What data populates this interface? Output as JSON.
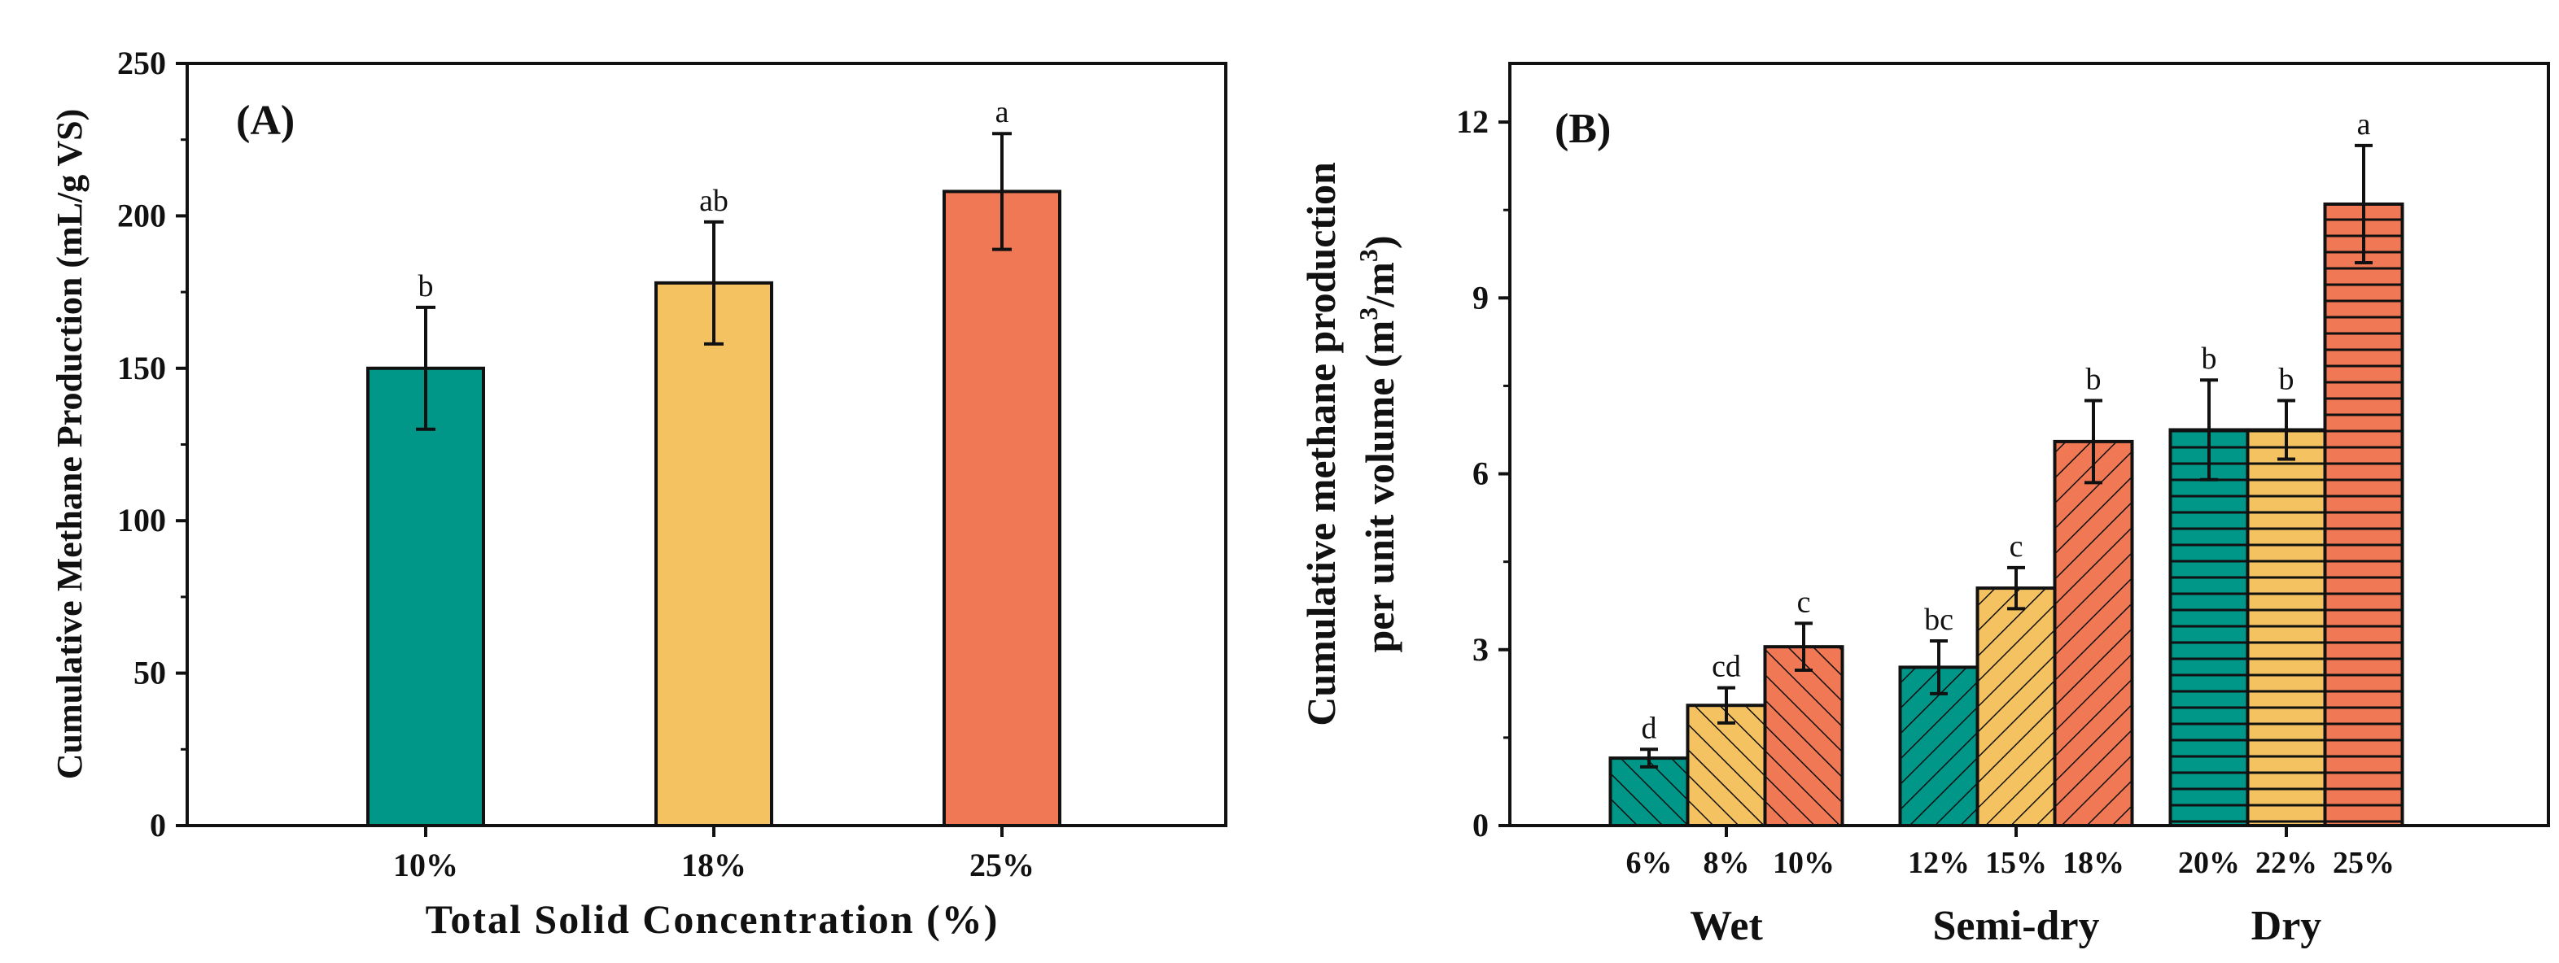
{
  "chart_data": [
    {
      "type": "bar",
      "panel_label": "(A)",
      "title": "",
      "xlabel": "Total Solid Concentration (%)",
      "ylabel": "Cumulative Methane Production (mL/g VS)",
      "categories": [
        "10%",
        "18%",
        "25%"
      ],
      "values": [
        150,
        178,
        208
      ],
      "errors": [
        20,
        20,
        19
      ],
      "letters": [
        "b",
        "ab",
        "a"
      ],
      "ylim": [
        0,
        250
      ],
      "yticks": [
        "0",
        "50",
        "100",
        "150",
        "200",
        "250"
      ],
      "grid": false,
      "colors": [
        "#009688",
        "#F5C262",
        "#F07855"
      ]
    },
    {
      "type": "bar",
      "panel_label": "(B)",
      "title": "",
      "xlabel": "",
      "ylabel_line1": "Cumulative methane production",
      "ylabel_line2": "per unit volume (m",
      "ylabel_sup1": "3",
      "ylabel_mid": "/m",
      "ylabel_sup2": "3",
      "ylabel_end": ")",
      "groups": [
        "Wet",
        "Semi-dry",
        "Dry"
      ],
      "categories": [
        [
          "6%",
          "8%",
          "10%"
        ],
        [
          "12%",
          "15%",
          "18%"
        ],
        [
          "20%",
          "22%",
          "25%"
        ]
      ],
      "values": [
        [
          1.15,
          2.05,
          3.05
        ],
        [
          2.7,
          4.05,
          6.55
        ],
        [
          6.75,
          6.75,
          10.6
        ]
      ],
      "errors": [
        [
          0.15,
          0.3,
          0.4
        ],
        [
          0.45,
          0.35,
          0.7
        ],
        [
          0.85,
          0.5,
          1.0
        ]
      ],
      "letters": [
        [
          "d",
          "cd",
          "c"
        ],
        [
          "bc",
          "c",
          "b"
        ],
        [
          "b",
          "b",
          "a"
        ]
      ],
      "ylim": [
        0,
        13
      ],
      "yticks": [
        "0",
        "3",
        "6",
        "9",
        "12"
      ],
      "grid": false,
      "colors": [
        "#009688",
        "#F5C262",
        "#F07855"
      ],
      "hatch": {
        "Wet": "backslash",
        "Semi-dry": "slash",
        "Dry": "horizontal"
      }
    }
  ]
}
